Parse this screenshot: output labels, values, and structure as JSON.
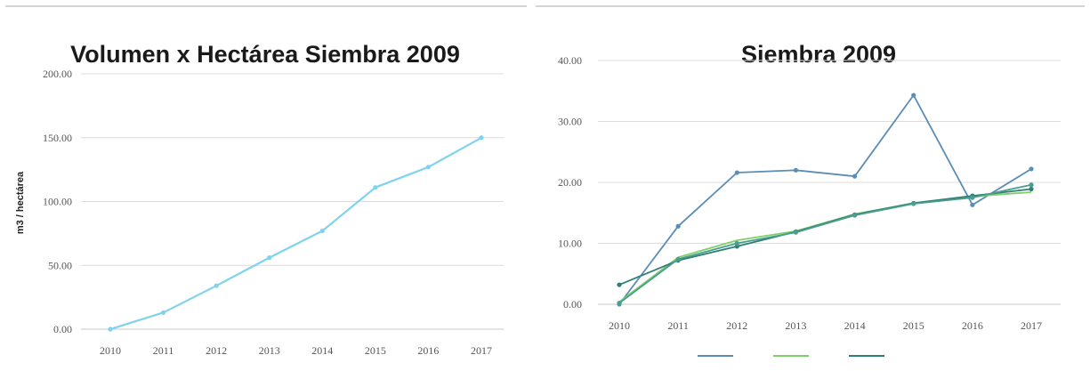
{
  "colors": {
    "light_blue": "#7fd3ee",
    "steel_blue": "#5b8db5",
    "green": "#7ed06a",
    "dark_teal": "#2f7f78",
    "grid": "#dcdcdc"
  },
  "chart_data": [
    {
      "type": "line",
      "title": "Volumen x Hectárea Siembra 2009",
      "xlabel": "",
      "ylabel": "m3 / hectárea",
      "categories": [
        "2010",
        "2011",
        "2012",
        "2013",
        "2014",
        "2015",
        "2016",
        "2017"
      ],
      "ylim": [
        0,
        200
      ],
      "yticks": [
        "0.00",
        "50.00",
        "100.00",
        "150.00",
        "200.00"
      ],
      "grid": true,
      "series": [
        {
          "values": [
            0,
            13,
            34,
            56,
            77,
            111,
            127,
            150
          ],
          "color": "#7fd3ee",
          "markers": true
        }
      ]
    },
    {
      "type": "line",
      "title": "Siembra 2009",
      "xlabel": "",
      "ylabel": "",
      "categories": [
        "2010",
        "2011",
        "2012",
        "2013",
        "2014",
        "2015",
        "2016",
        "2017"
      ],
      "ylim": [
        0,
        40
      ],
      "yticks": [
        "0.00",
        "10.00",
        "20.00",
        "30.00",
        "40.00"
      ],
      "grid": true,
      "legend": "bottom",
      "series": [
        {
          "values": [
            0,
            12.8,
            21.6,
            22.0,
            21.0,
            34.3,
            16.3,
            22.2
          ],
          "color": "#5b8db5",
          "markers": true
        },
        {
          "values": [
            0.4,
            7.7,
            10.5,
            12.0,
            14.8,
            16.6,
            17.7,
            18.4
          ],
          "color": "#7ed06a",
          "markers": false
        },
        {
          "values": [
            3.2,
            7.2,
            9.5,
            11.9,
            14.7,
            16.6,
            17.8,
            18.9
          ],
          "color": "#2f7f78",
          "markers": true
        },
        {
          "values": [
            0.2,
            7.4,
            10.0,
            11.8,
            14.6,
            16.5,
            17.5,
            19.6
          ],
          "color": "#4a9e8e",
          "markers": true
        }
      ]
    }
  ]
}
